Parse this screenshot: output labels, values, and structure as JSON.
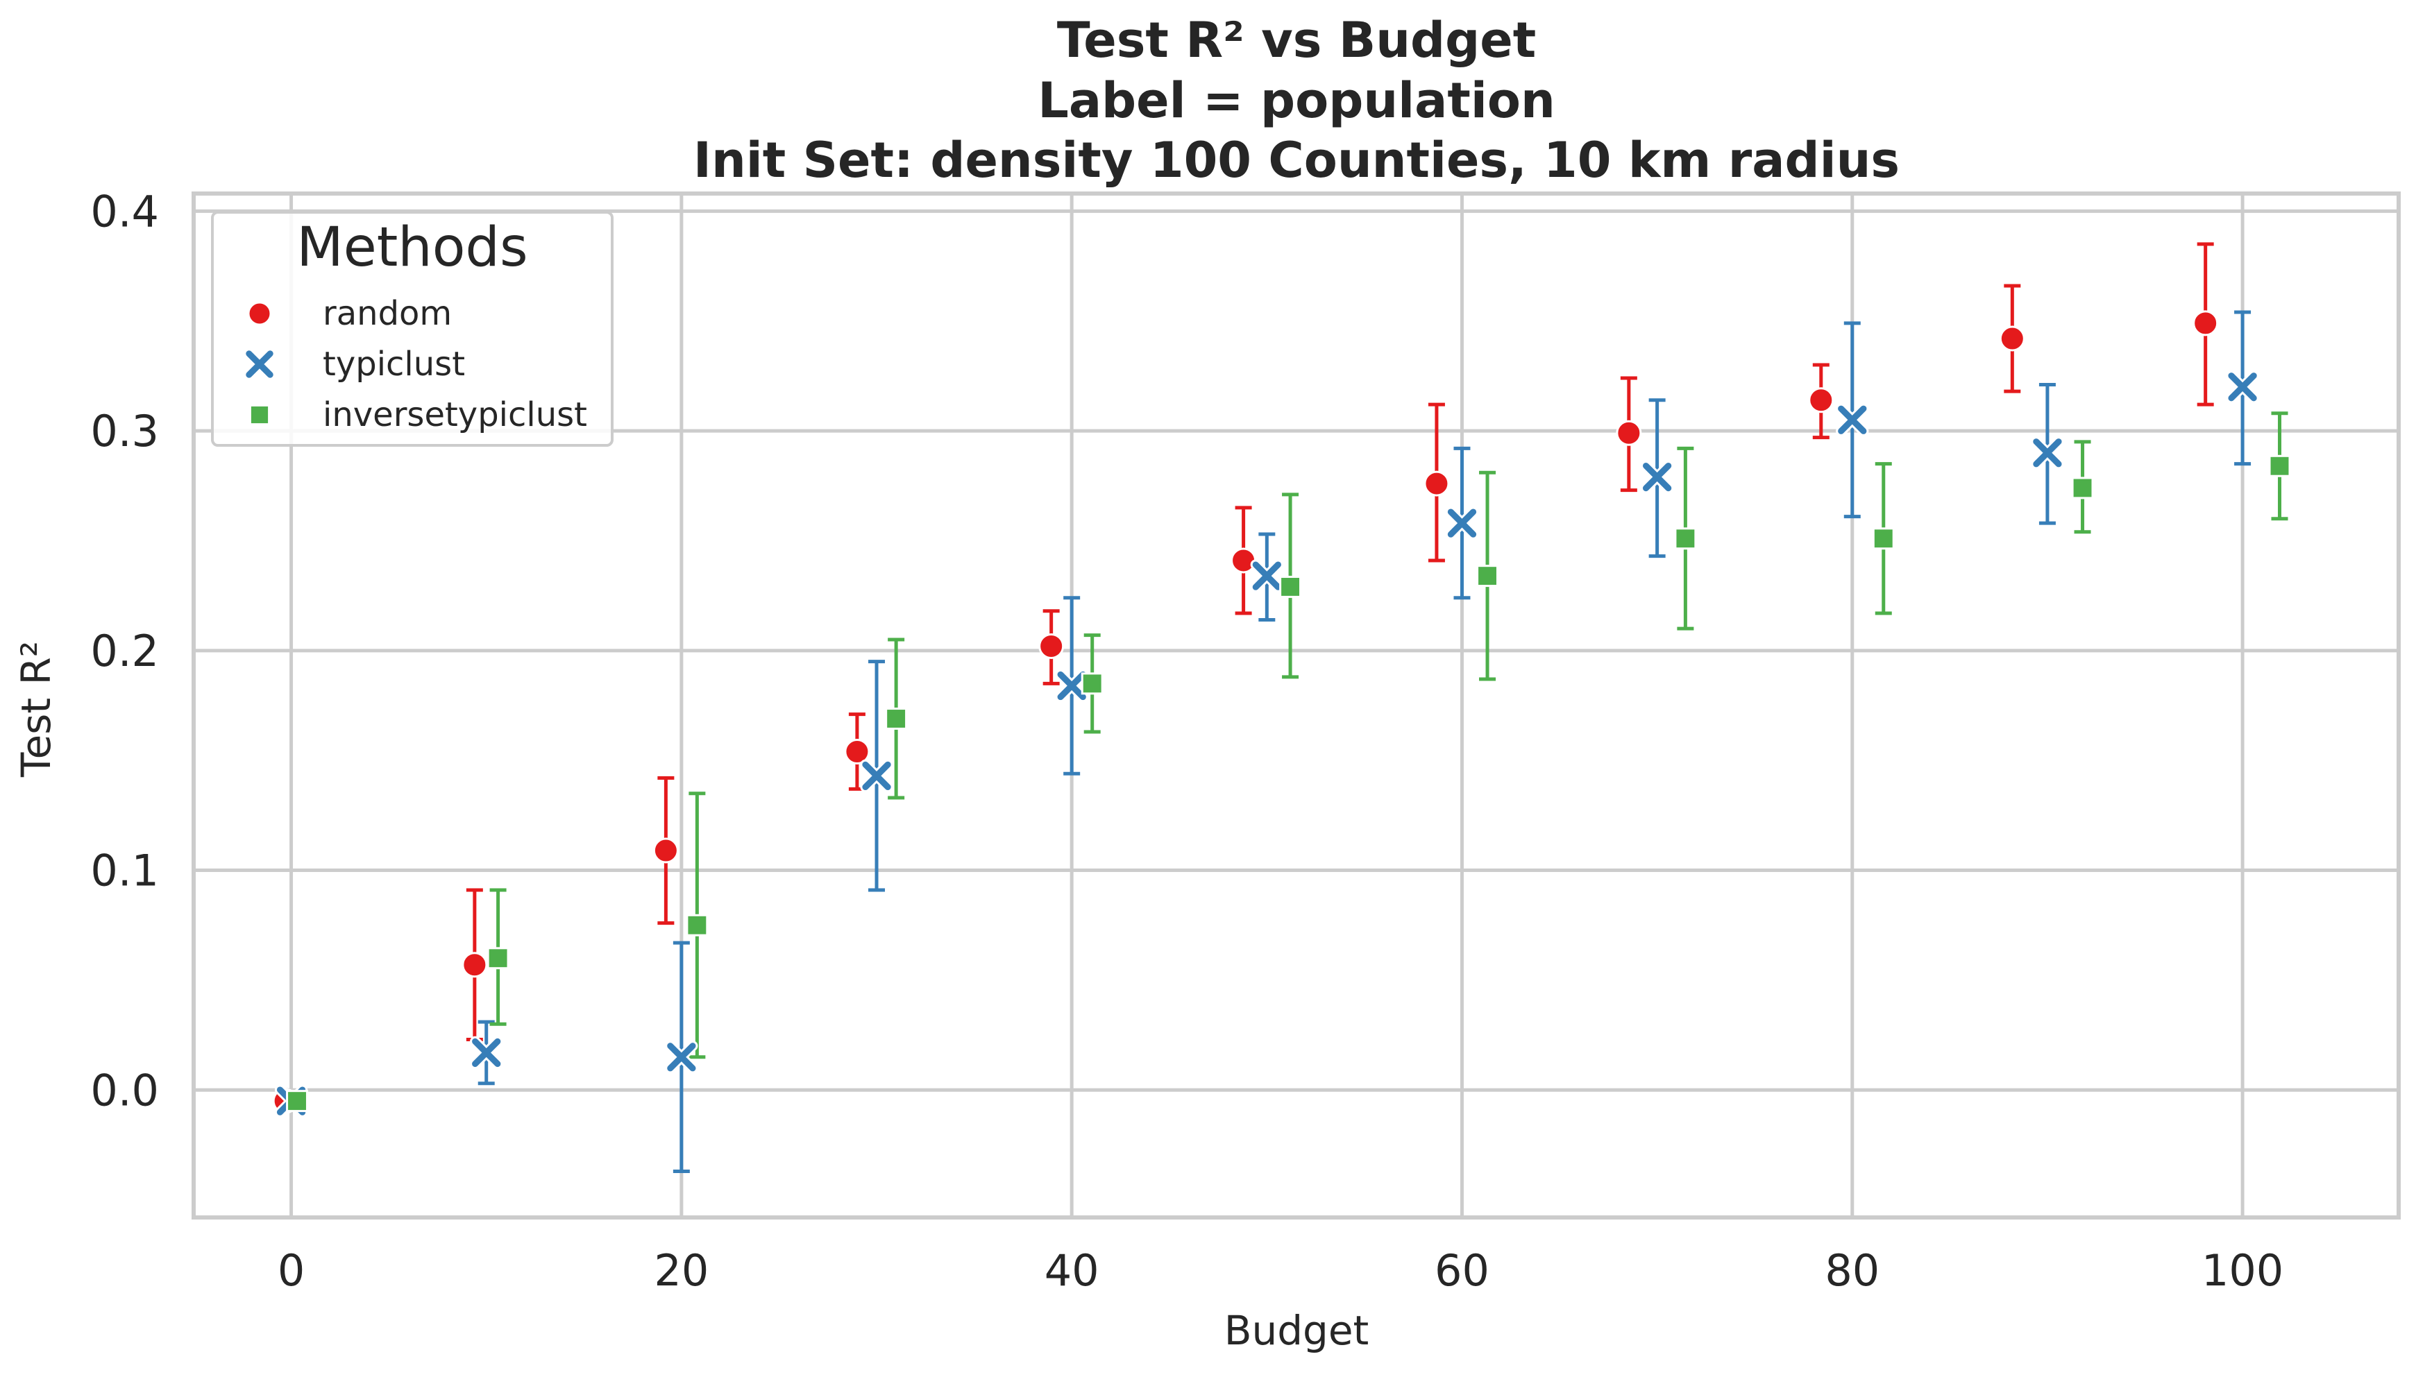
{
  "chart_data": {
    "type": "scatter",
    "title": "Test R² vs Budget",
    "subtitle_lines": [
      "Label = population",
      "Init Set: density 100 Counties, 10 km radius"
    ],
    "xlabel": "Budget",
    "ylabel": "Test R²",
    "xlim": [
      -5,
      108
    ],
    "ylim": [
      -0.058,
      0.408
    ],
    "xticks": [
      0,
      20,
      40,
      60,
      80,
      100
    ],
    "xtick_labels": [
      "0",
      "20",
      "40",
      "60",
      "80",
      "100"
    ],
    "yticks": [
      0.0,
      0.1,
      0.2,
      0.3,
      0.4
    ],
    "ytick_labels": [
      "0.0",
      "0.1",
      "0.2",
      "0.3",
      "0.4"
    ],
    "grid": true,
    "legend": {
      "title": "Methods",
      "placement": "top-left"
    },
    "series": [
      {
        "name": "random",
        "color": "#e41a1c",
        "marker": "circle",
        "points": [
          {
            "x": 0,
            "y": -0.005,
            "lo": -0.008,
            "hi": -0.002
          },
          {
            "x": 10,
            "y": 0.057,
            "lo": 0.023,
            "hi": 0.091
          },
          {
            "x": 20,
            "y": 0.109,
            "lo": 0.076,
            "hi": 0.142
          },
          {
            "x": 30,
            "y": 0.154,
            "lo": 0.137,
            "hi": 0.171
          },
          {
            "x": 40,
            "y": 0.202,
            "lo": 0.185,
            "hi": 0.218
          },
          {
            "x": 50,
            "y": 0.241,
            "lo": 0.217,
            "hi": 0.265
          },
          {
            "x": 60,
            "y": 0.276,
            "lo": 0.241,
            "hi": 0.312
          },
          {
            "x": 70,
            "y": 0.299,
            "lo": 0.273,
            "hi": 0.324
          },
          {
            "x": 80,
            "y": 0.314,
            "lo": 0.297,
            "hi": 0.33
          },
          {
            "x": 90,
            "y": 0.342,
            "lo": 0.318,
            "hi": 0.366
          },
          {
            "x": 100,
            "y": 0.349,
            "lo": 0.312,
            "hi": 0.385
          }
        ]
      },
      {
        "name": "typiclust",
        "color": "#377eb8",
        "marker": "x",
        "points": [
          {
            "x": 0,
            "y": -0.005,
            "lo": -0.008,
            "hi": -0.002
          },
          {
            "x": 10,
            "y": 0.017,
            "lo": 0.003,
            "hi": 0.031
          },
          {
            "x": 20,
            "y": 0.015,
            "lo": -0.037,
            "hi": 0.067
          },
          {
            "x": 30,
            "y": 0.143,
            "lo": 0.091,
            "hi": 0.195
          },
          {
            "x": 40,
            "y": 0.184,
            "lo": 0.144,
            "hi": 0.224
          },
          {
            "x": 50,
            "y": 0.234,
            "lo": 0.214,
            "hi": 0.253
          },
          {
            "x": 60,
            "y": 0.258,
            "lo": 0.224,
            "hi": 0.292
          },
          {
            "x": 70,
            "y": 0.279,
            "lo": 0.243,
            "hi": 0.314
          },
          {
            "x": 80,
            "y": 0.305,
            "lo": 0.261,
            "hi": 0.349
          },
          {
            "x": 90,
            "y": 0.29,
            "lo": 0.258,
            "hi": 0.321
          },
          {
            "x": 100,
            "y": 0.32,
            "lo": 0.285,
            "hi": 0.354
          }
        ]
      },
      {
        "name": "inversetypiclust",
        "color": "#4daf4a",
        "marker": "square",
        "points": [
          {
            "x": 0,
            "y": -0.005,
            "lo": -0.008,
            "hi": -0.002
          },
          {
            "x": 10,
            "y": 0.06,
            "lo": 0.03,
            "hi": 0.091
          },
          {
            "x": 20,
            "y": 0.075,
            "lo": 0.015,
            "hi": 0.135
          },
          {
            "x": 30,
            "y": 0.169,
            "lo": 0.133,
            "hi": 0.205
          },
          {
            "x": 40,
            "y": 0.185,
            "lo": 0.163,
            "hi": 0.207
          },
          {
            "x": 50,
            "y": 0.229,
            "lo": 0.188,
            "hi": 0.271
          },
          {
            "x": 60,
            "y": 0.234,
            "lo": 0.187,
            "hi": 0.281
          },
          {
            "x": 70,
            "y": 0.251,
            "lo": 0.21,
            "hi": 0.292
          },
          {
            "x": 80,
            "y": 0.251,
            "lo": 0.217,
            "hi": 0.285
          },
          {
            "x": 90,
            "y": 0.274,
            "lo": 0.254,
            "hi": 0.295
          },
          {
            "x": 100,
            "y": 0.284,
            "lo": 0.26,
            "hi": 0.308
          }
        ]
      }
    ]
  }
}
